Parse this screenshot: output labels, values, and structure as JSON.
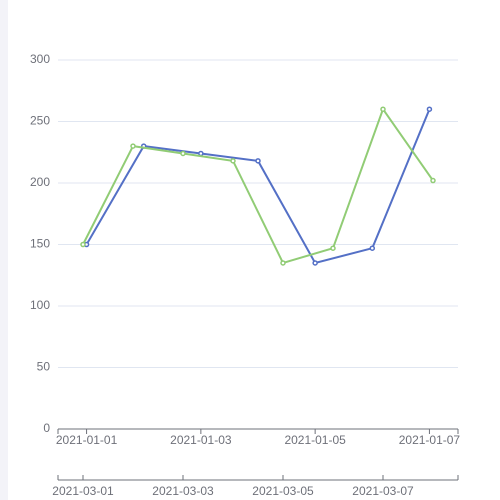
{
  "chart_data": {
    "type": "line",
    "ylim": [
      0,
      300
    ],
    "yticks": [
      0,
      50,
      100,
      150,
      200,
      250,
      300
    ],
    "grid": true,
    "xlim": [
      "2020-12-31T12:00",
      "2021-01-07T12:00"
    ],
    "xticks": [
      "2021-01-01",
      "2021-01-03",
      "2021-01-05",
      "2021-01-07"
    ],
    "x2lim": [
      "2021-02-28T12:00",
      "2021-03-08T12:00"
    ],
    "x2ticks": [
      "2021-03-01",
      "2021-03-03",
      "2021-03-05",
      "2021-03-07"
    ],
    "series": [
      {
        "color": "#5470c6",
        "axis": "x",
        "x": [
          "2021-01-01",
          "2021-01-02",
          "2021-01-03",
          "2021-01-04",
          "2021-01-05",
          "2021-01-06",
          "2021-01-07"
        ],
        "values": [
          150,
          230,
          224,
          218,
          135,
          147,
          260
        ]
      },
      {
        "color": "#91cc75",
        "axis": "x2",
        "x": [
          "2021-03-01",
          "2021-03-02",
          "2021-03-03",
          "2021-03-04",
          "2021-03-05",
          "2021-03-06",
          "2021-03-07",
          "2021-03-08"
        ],
        "values": [
          150,
          230,
          224,
          218,
          135,
          147,
          260,
          202
        ]
      }
    ]
  }
}
